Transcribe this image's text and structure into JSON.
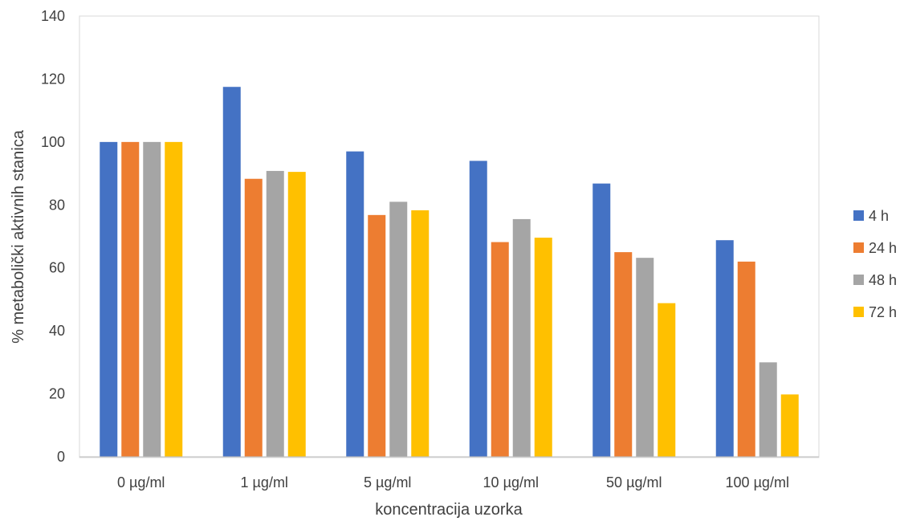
{
  "chart_data": {
    "type": "bar",
    "title": "",
    "xlabel": "koncentracija uzorka",
    "ylabel": "% metabolički aktivnih stanica",
    "categories": [
      "0 µg/ml",
      "1 µg/ml",
      "5 µg/ml",
      "10 µg/ml",
      "50 µg/ml",
      "100 µg/ml"
    ],
    "ylim": [
      0,
      140
    ],
    "yticks": [
      0,
      20,
      40,
      60,
      80,
      100,
      120,
      140
    ],
    "grid": false,
    "legend_position": "right",
    "series": [
      {
        "name": "4 h",
        "color": "#4472C4",
        "values": [
          100,
          117.5,
          97,
          94,
          86.8,
          68.8
        ]
      },
      {
        "name": "24 h",
        "color": "#ED7D31",
        "values": [
          100,
          88.3,
          76.8,
          68.2,
          65,
          62
        ]
      },
      {
        "name": "48 h",
        "color": "#A5A5A5",
        "values": [
          100,
          90.8,
          81,
          75.5,
          63.2,
          30
        ]
      },
      {
        "name": "72 h",
        "color": "#FFC000",
        "values": [
          100,
          90.5,
          78.3,
          69.6,
          48.8,
          19.8
        ]
      }
    ]
  }
}
